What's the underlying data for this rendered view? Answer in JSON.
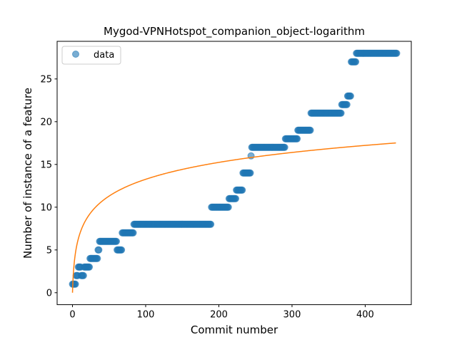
{
  "chart_data": {
    "type": "scatter",
    "title": "Mygod-VPNHotspot_companion_object-logarithm",
    "xlabel": "Commit number",
    "ylabel": "Number of instance of a feature",
    "xlim": [
      -21,
      463
    ],
    "ylim": [
      -1.4,
      29.4
    ],
    "xticks": [
      0,
      100,
      200,
      300,
      400
    ],
    "yticks": [
      0,
      5,
      10,
      15,
      20,
      25
    ],
    "grid": false,
    "legend": {
      "entries": [
        "data"
      ],
      "placement": "top-left"
    },
    "colors": {
      "data": "#1f77b4",
      "fit": "#ff7f0e"
    },
    "series": [
      {
        "name": "data",
        "kind": "markers",
        "steps": [
          [
            0,
            4,
            1
          ],
          [
            5,
            7,
            2
          ],
          [
            8,
            11,
            3
          ],
          [
            12,
            15,
            2
          ],
          [
            16,
            23,
            3
          ],
          [
            24,
            34,
            4
          ],
          [
            35,
            36,
            5
          ],
          [
            37,
            60,
            6
          ],
          [
            61,
            67,
            5
          ],
          [
            68,
            83,
            7
          ],
          [
            84,
            189,
            8
          ],
          [
            190,
            213,
            10
          ],
          [
            214,
            223,
            11
          ],
          [
            224,
            232,
            12
          ],
          [
            233,
            243,
            14
          ],
          [
            244,
            244,
            16
          ],
          [
            245,
            290,
            17
          ],
          [
            291,
            307,
            18
          ],
          [
            308,
            325,
            19
          ],
          [
            326,
            367,
            21
          ],
          [
            368,
            375,
            22
          ],
          [
            376,
            380,
            23
          ],
          [
            381,
            387,
            27
          ],
          [
            388,
            443,
            28
          ]
        ]
      },
      {
        "kind": "line",
        "model": "a*ln(x+1)",
        "a": 2.874,
        "x_range": [
          0,
          442
        ]
      }
    ]
  }
}
